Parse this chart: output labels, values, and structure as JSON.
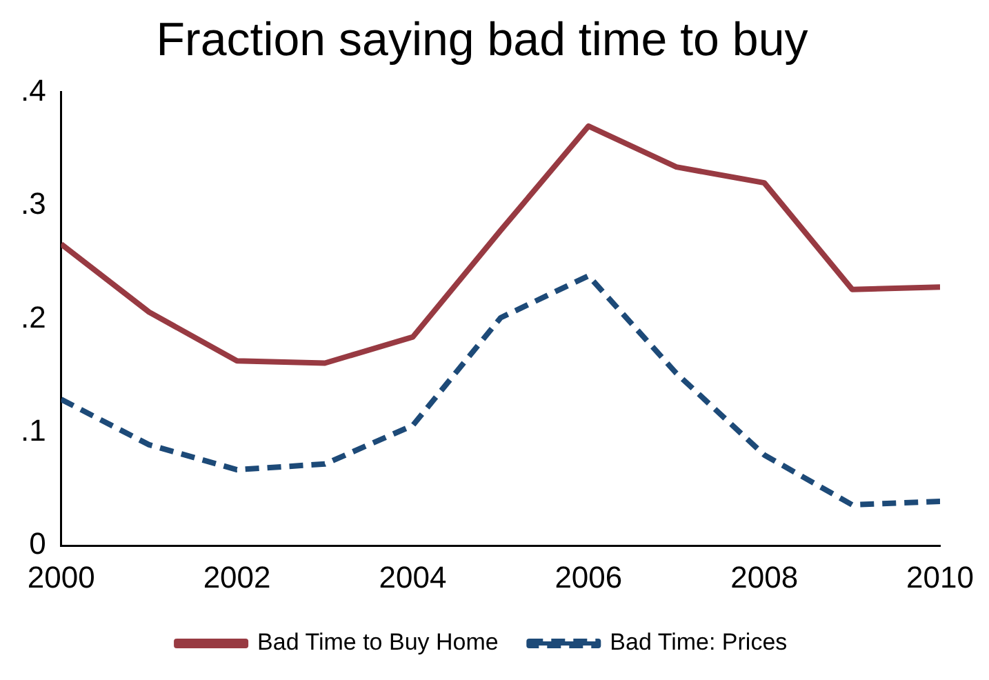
{
  "chart_data": {
    "type": "line",
    "title": "Fraction saying bad time to buy",
    "x": [
      2000,
      2001,
      2002,
      2003,
      2004,
      2005,
      2006,
      2007,
      2008,
      2009,
      2010
    ],
    "series": [
      {
        "name": "Bad Time to Buy Home",
        "color": "#983a42",
        "line_style": "solid",
        "values": [
          0.266,
          0.206,
          0.163,
          0.161,
          0.184,
          0.278,
          0.37,
          0.334,
          0.32,
          0.226,
          0.228
        ]
      },
      {
        "name": "Bad Time: Prices",
        "color": "#1d4a78",
        "line_style": "dashed",
        "values": [
          0.129,
          0.089,
          0.067,
          0.072,
          0.106,
          0.201,
          0.238,
          0.152,
          0.08,
          0.036,
          0.039
        ]
      }
    ],
    "xlim": [
      2000,
      2010
    ],
    "xticks": [
      2000,
      2002,
      2004,
      2006,
      2008,
      2010
    ],
    "ylim": [
      0,
      0.4
    ],
    "yticks": [
      0,
      {
        "value": 0.1,
        "label": ".1"
      },
      {
        "value": 0.2,
        "label": ".2"
      },
      {
        "value": 0.3,
        "label": ".3"
      },
      {
        "value": 0.4,
        "label": ".4"
      }
    ],
    "grid": false,
    "legend": "bottom",
    "marker": "none"
  }
}
